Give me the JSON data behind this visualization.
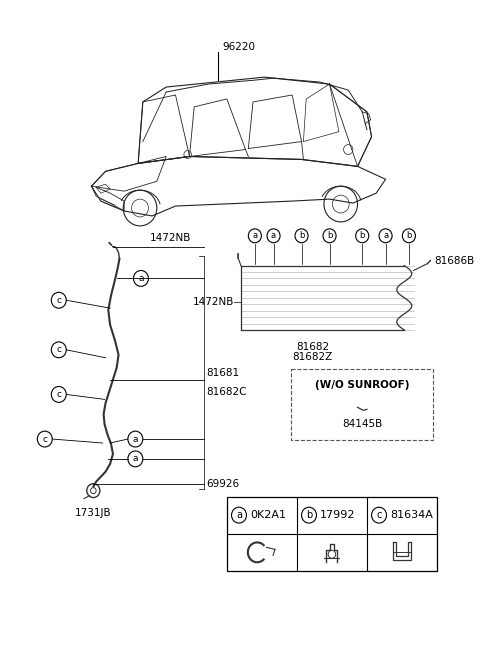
{
  "bg_color": "#ffffff",
  "fig_width": 4.8,
  "fig_height": 6.56,
  "dpi": 100,
  "car_label": "96220",
  "left_labels": {
    "1472NB": "1472NB",
    "81681": "81681",
    "81682C": "81682C",
    "69926": "69926",
    "1731JB": "1731JB"
  },
  "right_labels": {
    "1472NB": "1472NB",
    "81682": "81682",
    "81682Z": "81682Z",
    "81686B": "81686B"
  },
  "sunroof_box_text": "(W/O SUNROOF)",
  "sunroof_part": "84145B",
  "legend": [
    {
      "letter": "a",
      "code": "0K2A1"
    },
    {
      "letter": "b",
      "code": "17992"
    },
    {
      "letter": "c",
      "code": "81634A"
    }
  ],
  "line_color": "#333333",
  "text_color": "#000000"
}
